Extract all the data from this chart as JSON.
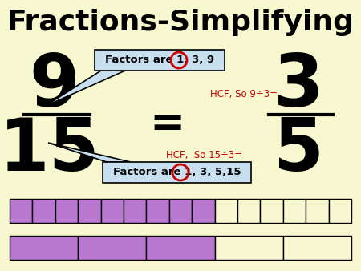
{
  "title": "Fractions-Simplifying",
  "bg_color": "#f8f8d0",
  "title_color": "#000000",
  "title_fontsize": 26,
  "numerator_left": "9",
  "denominator_left": "15",
  "numerator_right": "3",
  "denominator_right": "5",
  "equals_sign": "=",
  "box1_text": "Factors are 1, 3, 9",
  "box2_text": "Factors are 1, 3, 5,15",
  "box_bg": "#c8dff0",
  "box_edge": "#000000",
  "hcf1_text": "HCF, So 9÷3=",
  "hcf2_text": "HCF,  So 15÷3=",
  "hcf_color": "#cc0000",
  "circle_color": "#cc0000",
  "bar1_filled": 9,
  "bar1_total": 15,
  "bar2_filled": 3,
  "bar2_total": 5,
  "bar_filled_color": "#b878d0",
  "bar_empty_color": "#f8f8d0",
  "bar_edge_color": "#000000",
  "number_color": "#000000",
  "line_color": "#000000",
  "arrow_color": "#a0a0a0"
}
